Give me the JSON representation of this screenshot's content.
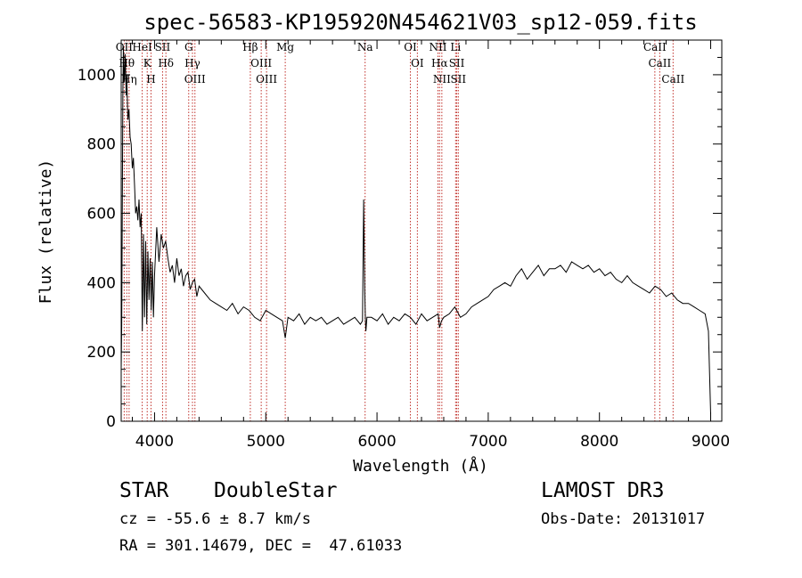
{
  "chart_data": {
    "type": "line",
    "title": "spec-56583-KP195920N454621V03_sp12-059.fits",
    "xlabel": "Wavelength (Å)",
    "ylabel": "Flux (relative)",
    "xlim": [
      3700,
      9100
    ],
    "ylim": [
      0,
      1100
    ],
    "xticks": [
      4000,
      5000,
      6000,
      7000,
      8000,
      9000
    ],
    "yticks": [
      0,
      200,
      400,
      600,
      800,
      1000
    ],
    "grid": false,
    "series": [
      {
        "x": [
          3700,
          3705,
          3710,
          3715,
          3720,
          3725,
          3730,
          3735,
          3740,
          3745,
          3750,
          3760,
          3770,
          3780,
          3790,
          3800,
          3810,
          3820,
          3830,
          3840,
          3850,
          3860,
          3870,
          3880,
          3890,
          3900,
          3910,
          3920,
          3930,
          3940,
          3950,
          3960,
          3970,
          3980,
          3990,
          4000,
          4020,
          4040,
          4060,
          4080,
          4100,
          4120,
          4140,
          4160,
          4180,
          4200,
          4220,
          4240,
          4260,
          4280,
          4300,
          4320,
          4340,
          4360,
          4380,
          4400,
          4450,
          4500,
          4550,
          4600,
          4650,
          4700,
          4750,
          4800,
          4850,
          4900,
          4950,
          5000,
          5050,
          5100,
          5150,
          5175,
          5200,
          5250,
          5300,
          5350,
          5400,
          5450,
          5500,
          5550,
          5600,
          5650,
          5700,
          5750,
          5800,
          5850,
          5870,
          5880,
          5890,
          5895,
          5900,
          5910,
          5950,
          6000,
          6050,
          6100,
          6150,
          6200,
          6250,
          6300,
          6350,
          6400,
          6450,
          6500,
          6550,
          6563,
          6580,
          6600,
          6650,
          6700,
          6750,
          6800,
          6850,
          6900,
          6950,
          7000,
          7050,
          7100,
          7150,
          7200,
          7250,
          7300,
          7350,
          7400,
          7450,
          7500,
          7550,
          7600,
          7650,
          7700,
          7750,
          7800,
          7850,
          7900,
          7950,
          8000,
          8050,
          8100,
          8150,
          8200,
          8250,
          8300,
          8350,
          8400,
          8450,
          8500,
          8550,
          8600,
          8650,
          8700,
          8750,
          8800,
          8850,
          8900,
          8950,
          8980,
          9000
        ],
        "y": [
          150,
          280,
          600,
          950,
          1080,
          1000,
          980,
          1060,
          1010,
          940,
          1000,
          870,
          900,
          820,
          800,
          730,
          760,
          680,
          600,
          620,
          580,
          640,
          560,
          600,
          260,
          540,
          300,
          520,
          280,
          490,
          350,
          470,
          320,
          460,
          300,
          420,
          560,
          460,
          540,
          500,
          520,
          470,
          430,
          450,
          400,
          470,
          420,
          440,
          390,
          420,
          430,
          380,
          400,
          410,
          360,
          390,
          370,
          350,
          340,
          330,
          320,
          340,
          310,
          330,
          320,
          300,
          290,
          320,
          310,
          300,
          290,
          240,
          300,
          290,
          310,
          280,
          300,
          290,
          300,
          280,
          290,
          300,
          280,
          290,
          300,
          280,
          290,
          640,
          380,
          300,
          260,
          300,
          300,
          290,
          310,
          280,
          300,
          290,
          310,
          300,
          280,
          310,
          290,
          300,
          310,
          270,
          290,
          300,
          310,
          330,
          300,
          310,
          330,
          340,
          350,
          360,
          380,
          390,
          400,
          390,
          420,
          440,
          410,
          430,
          450,
          420,
          440,
          440,
          450,
          430,
          460,
          450,
          440,
          450,
          430,
          440,
          420,
          430,
          410,
          400,
          420,
          400,
          390,
          380,
          370,
          390,
          380,
          360,
          370,
          350,
          340,
          340,
          330,
          320,
          310,
          260,
          20
        ]
      }
    ],
    "lines": [
      {
        "x": 3727,
        "label": "OII"
      },
      {
        "x": 3750,
        "label": "Hθ"
      },
      {
        "x": 3771,
        "label": "Hη"
      },
      {
        "x": 3889,
        "label": "HeI"
      },
      {
        "x": 3934,
        "label": "K"
      },
      {
        "x": 3968,
        "label": "H"
      },
      {
        "x": 4072,
        "label": "SII"
      },
      {
        "x": 4102,
        "label": "Hδ"
      },
      {
        "x": 4307,
        "label": "G"
      },
      {
        "x": 4341,
        "label": "Hγ"
      },
      {
        "x": 4363,
        "label": "OIII"
      },
      {
        "x": 4861,
        "label": "Hβ"
      },
      {
        "x": 4959,
        "label": "OIII"
      },
      {
        "x": 5007,
        "label": "OIII"
      },
      {
        "x": 5175,
        "label": "Mg"
      },
      {
        "x": 5893,
        "label": "Na"
      },
      {
        "x": 6300,
        "label": "OI"
      },
      {
        "x": 6363,
        "label": "OI"
      },
      {
        "x": 6548,
        "label": "NII"
      },
      {
        "x": 6563,
        "label": "Hα"
      },
      {
        "x": 6583,
        "label": "NII"
      },
      {
        "x": 6707,
        "label": "Li"
      },
      {
        "x": 6717,
        "label": "SII"
      },
      {
        "x": 6731,
        "label": "SII"
      },
      {
        "x": 8498,
        "label": "CaII"
      },
      {
        "x": 8542,
        "label": "CaII"
      },
      {
        "x": 8662,
        "label": "CaII"
      }
    ]
  },
  "footer": {
    "object_class": "STAR",
    "subclass": "DoubleStar",
    "survey": "LAMOST DR3",
    "cz": "cz = -55.6 ± 8.7 km/s",
    "obs_date": "Obs-Date: 20131017",
    "coords": "RA = 301.14679, DEC =  47.61033"
  }
}
